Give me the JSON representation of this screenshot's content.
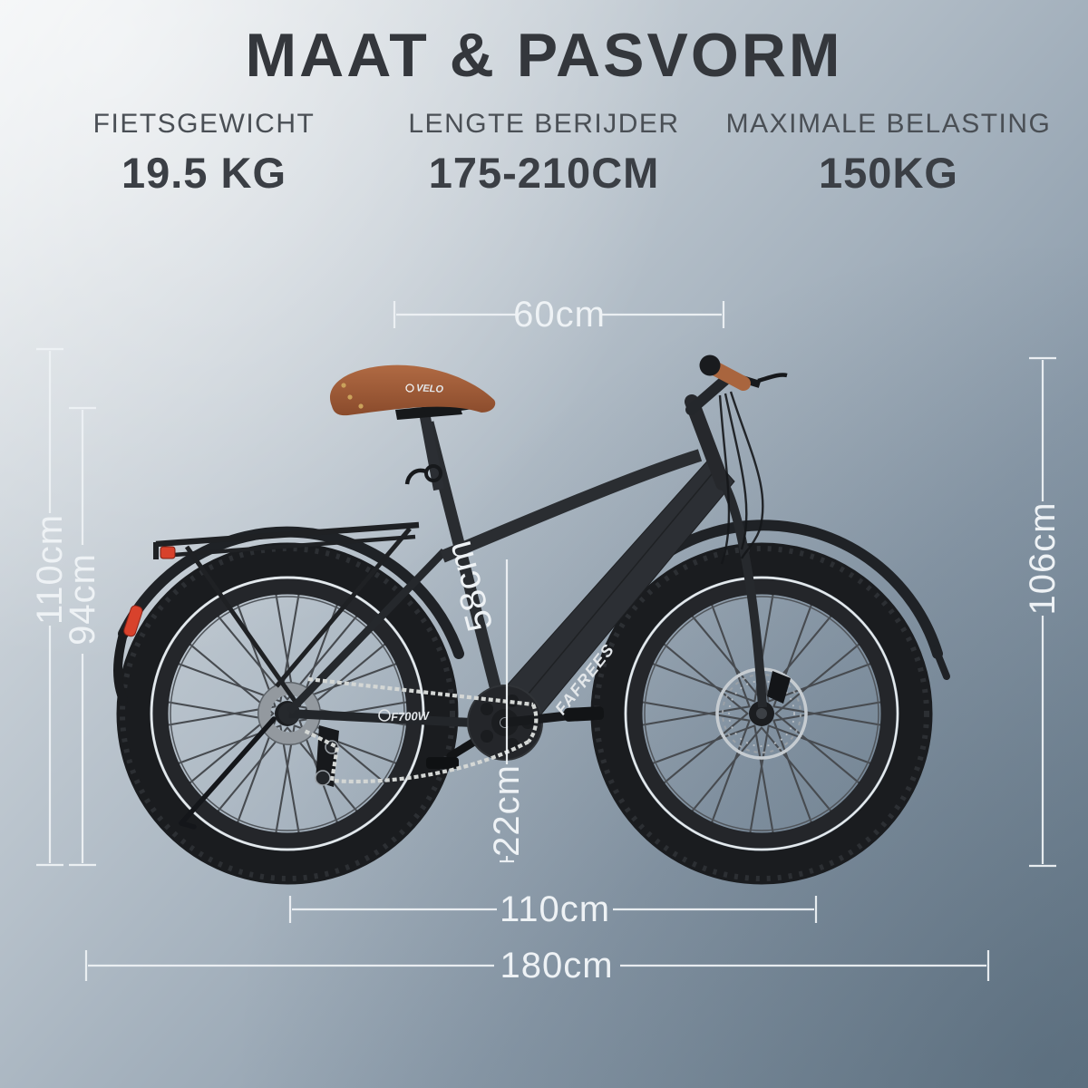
{
  "header": {
    "title": "MAAT & PASVORM",
    "stats": [
      {
        "label": "FIETSGEWICHT",
        "value": "19.5 KG"
      },
      {
        "label": "LENGTE BERIJDER",
        "value": "175-210CM"
      },
      {
        "label": "MAXIMALE BELASTING",
        "value": "150KG"
      }
    ]
  },
  "measurements": {
    "saddle_to_handlebar": "60cm",
    "height_total": "110cm",
    "height_seat": "94cm",
    "seat_tube": "58cm",
    "crank_clearance": "22cm",
    "handlebar_height": "106cm",
    "wheelbase": "110cm",
    "total_length": "180cm"
  },
  "bike": {
    "brand": "FAFREES",
    "model": "F700W",
    "saddle_brand": "VELO"
  },
  "colors": {
    "background_light": "#eef1f3",
    "background_dark": "#6e8292",
    "frame_dark": "#2b2e32",
    "accent_red": "#d8422c",
    "saddle_brown": "#a8653f",
    "dimension_white": "#eef2f5",
    "title_text": "#34373c"
  }
}
